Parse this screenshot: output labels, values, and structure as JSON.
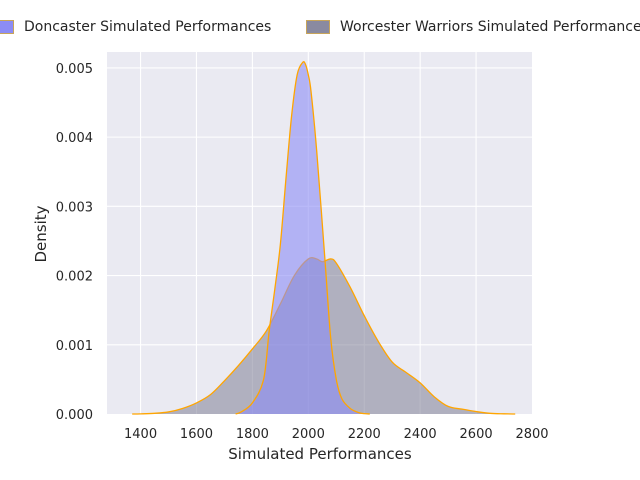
{
  "chart_data": {
    "type": "area",
    "title": "",
    "xlabel": "Simulated Performances",
    "ylabel": "Density",
    "xlim": [
      1280,
      2800
    ],
    "ylim": [
      0,
      0.00523
    ],
    "xticks": [
      1400,
      1600,
      1800,
      2000,
      2200,
      2400,
      2600,
      2800
    ],
    "yticks": [
      0,
      0.001,
      0.002,
      0.003,
      0.004,
      0.005
    ],
    "ytick_labels": [
      "0.000",
      "0.001",
      "0.002",
      "0.003",
      "0.004",
      "0.005"
    ],
    "grid": true,
    "legend_position": "top",
    "series": [
      {
        "name": "Doncaster Simulated Performances",
        "fill": "#8c8cf5",
        "fill_opacity": 0.6,
        "x": [
          1740,
          1760,
          1800,
          1840,
          1860,
          1880,
          1900,
          1920,
          1940,
          1960,
          1980,
          1990,
          2000,
          2010,
          2030,
          2060,
          2080,
          2100,
          2120,
          2150,
          2180,
          2200,
          2220
        ],
        "y": [
          0,
          3e-05,
          0.00016,
          0.0005,
          0.0012,
          0.0018,
          0.00245,
          0.0034,
          0.0043,
          0.0049,
          0.00508,
          0.00505,
          0.0049,
          0.00465,
          0.0038,
          0.0022,
          0.0011,
          0.0005,
          0.00022,
          8e-05,
          2e-05,
          5e-06,
          0
        ]
      },
      {
        "name": "Worcester Warriors Simulated Performances",
        "fill": "#808096",
        "fill_opacity": 0.55,
        "x": [
          1370,
          1400,
          1450,
          1500,
          1550,
          1600,
          1650,
          1700,
          1750,
          1800,
          1850,
          1900,
          1950,
          2000,
          2030,
          2050,
          2080,
          2100,
          2150,
          2200,
          2250,
          2300,
          2350,
          2400,
          2450,
          2500,
          2550,
          2600,
          2650,
          2700,
          2740
        ],
        "y": [
          0,
          2e-06,
          1e-05,
          3e-05,
          8e-05,
          0.00016,
          0.00028,
          0.00048,
          0.0007,
          0.00094,
          0.0012,
          0.00159,
          0.002,
          0.00224,
          0.00224,
          0.0022,
          0.00224,
          0.00218,
          0.00183,
          0.00142,
          0.00105,
          0.00075,
          0.0006,
          0.00045,
          0.00025,
          0.00011,
          7e-05,
          3.5e-05,
          1e-05,
          3e-06,
          0
        ]
      }
    ]
  },
  "colors": {
    "plot_background": "#eaeaf2",
    "grid": "#ffffff",
    "outline": "#ffa500",
    "text": "#262626"
  }
}
